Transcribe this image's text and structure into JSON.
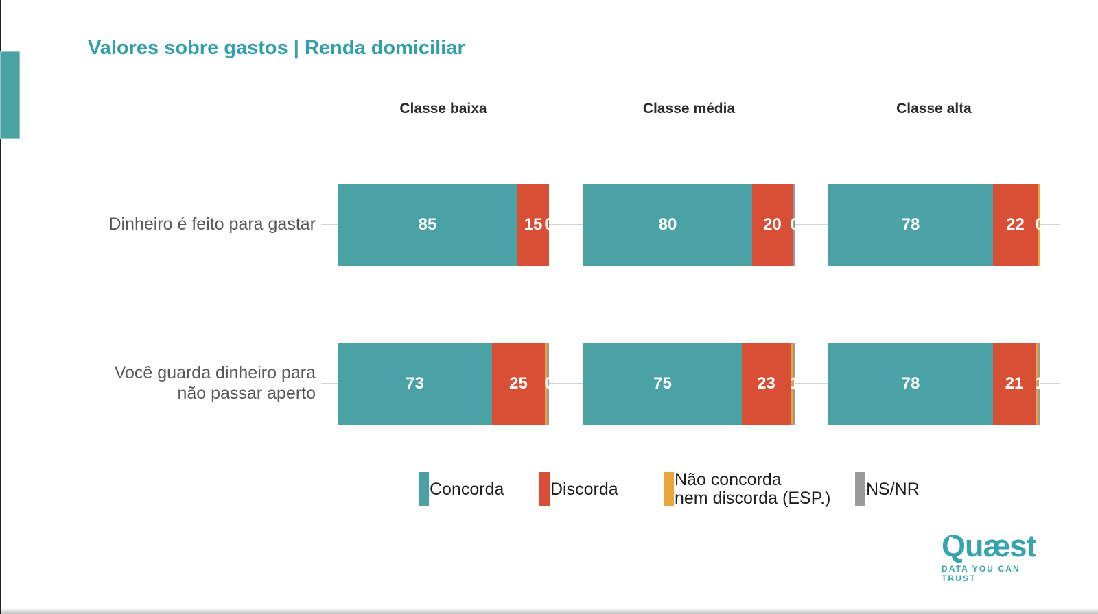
{
  "title": "Valores sobre gastos | Renda domiciliar",
  "legend": {
    "items": [
      {
        "key": "concorda",
        "label_lines": [
          "Concorda"
        ],
        "color": "#4AA2A5"
      },
      {
        "key": "discorda",
        "label_lines": [
          "Discorda"
        ],
        "color": "#D94F35"
      },
      {
        "key": "neutro",
        "label_lines": [
          "Não concorda",
          "nem discorda (ESP.)"
        ],
        "color": "#EBA33C"
      },
      {
        "key": "nsnr",
        "label_lines": [
          "NS/NR"
        ],
        "color": "#9B9B9B"
      }
    ]
  },
  "logo": {
    "wordmark": "Quæst",
    "tagline": "DATA YOU CAN TRUST"
  },
  "colors": {
    "concorda": "#4AA2A5",
    "discorda": "#D94F35",
    "neutro": "#EBA33C",
    "nsnr": "#9B9B9B",
    "title": "#339FA9",
    "header_text": "#2b2b2b",
    "row_label_text": "#56575a",
    "axis_line": "#d2d2d2"
  },
  "chart_data": {
    "type": "bar",
    "variant": "horizontal-stacked-faceted",
    "title": "Valores sobre gastos | Renda domiciliar",
    "facets": [
      "Classe baixa",
      "Classe média",
      "Classe alta"
    ],
    "categories": [
      "Dinheiro é feito para gastar",
      "Você guarda dinheiro para não passar aperto"
    ],
    "row_label_lines": [
      [
        "Dinheiro é feito para gastar"
      ],
      [
        "Você guarda dinheiro para",
        "não passar aperto"
      ]
    ],
    "legend_names": [
      "Concorda",
      "Discorda",
      "Não concorda nem discorda (ESP.)",
      "NS/NR"
    ],
    "series": [
      {
        "name": "Concorda",
        "values": [
          [
            85,
            80,
            78
          ],
          [
            73,
            75,
            78
          ]
        ]
      },
      {
        "name": "Discorda",
        "values": [
          [
            15,
            20,
            22
          ],
          [
            25,
            23,
            21
          ]
        ]
      },
      {
        "name": "Não concorda nem discorda (ESP.)",
        "values": [
          [
            0,
            0,
            0
          ],
          [
            0,
            1,
            1
          ]
        ]
      },
      {
        "name": "NS/NR",
        "values": [
          [
            0,
            0,
            0
          ],
          [
            1,
            1,
            0
          ]
        ]
      }
    ],
    "xlim": [
      0,
      100
    ],
    "grid": false,
    "legend_position": "bottom",
    "cells": [
      [
        {
          "concorda": 85,
          "discorda": 15,
          "edge_label": "0",
          "slivers": []
        },
        {
          "concorda": 80,
          "discorda": 20,
          "edge_label": "0",
          "slivers": [
            "nsnr"
          ]
        },
        {
          "concorda": 78,
          "discorda": 22,
          "edge_label": "0",
          "slivers": [
            "neutro"
          ]
        }
      ],
      [
        {
          "concorda": 73,
          "discorda": 25,
          "edge_label": "0",
          "slivers": [
            "neutro",
            "nsnr"
          ]
        },
        {
          "concorda": 75,
          "discorda": 23,
          "edge_label": "1",
          "slivers": [
            "neutro",
            "nsnr"
          ]
        },
        {
          "concorda": 78,
          "discorda": 21,
          "edge_label": "1",
          "slivers": [
            "neutro",
            "nsnr"
          ]
        }
      ]
    ]
  }
}
